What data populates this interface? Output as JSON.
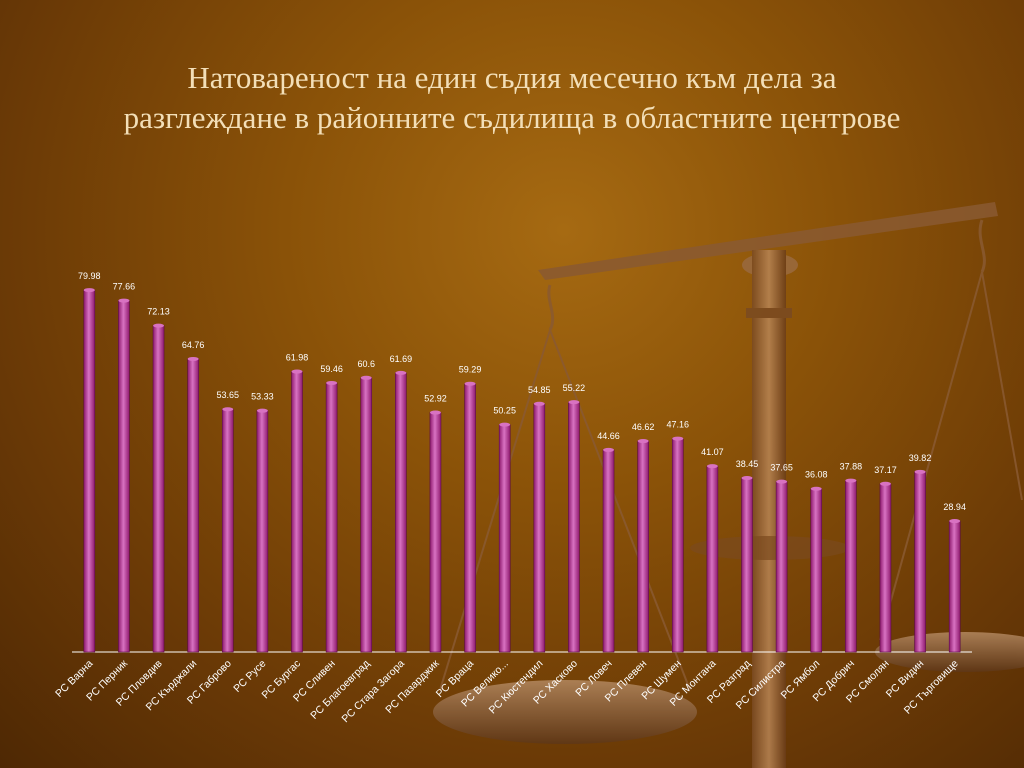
{
  "title_lines": [
    "Натовареност  на един съдия месечно към дела за",
    "разглеждане в районните съдилища в областните центрове"
  ],
  "colors": {
    "bar": "#8e1a6e",
    "bar_highlight": "#d872c2",
    "label": "#ffffff",
    "title": "#f3dfb8"
  },
  "chart_data": {
    "type": "bar",
    "categories": [
      "РС Варна",
      "РС Перник",
      "РС Пловдив",
      "РС Кърджали",
      "РС Габрово",
      "РС Русе",
      "РС Бургас",
      "РС Сливен",
      "РС Благоевград",
      "РС Стара Загора",
      "РС Пазарджик",
      "РС Враца",
      "РС Велико...",
      "РС Кюстендил",
      "РС Хасково",
      "РС Ловеч",
      "РС Плевен",
      "РС Шумен",
      "РС Монтана",
      "РС Разград",
      "РС Силистра",
      "РС Ямбол",
      "РС Добрич",
      "РС Смолян",
      "РС Видин",
      "РС Търговище"
    ],
    "values": [
      79.98,
      77.66,
      72.13,
      64.76,
      53.65,
      53.33,
      61.98,
      59.46,
      60.6,
      61.69,
      52.92,
      59.29,
      50.25,
      54.85,
      55.22,
      44.66,
      46.62,
      47.16,
      41.07,
      38.45,
      37.65,
      36.08,
      37.88,
      37.17,
      39.82,
      28.94
    ],
    "value_labels": [
      "79.98",
      "77.66",
      "72.13",
      "64.76",
      "53.65",
      "53.33",
      "61.98",
      "59.46",
      "60.6",
      "61.69",
      "52.92",
      "59.29",
      "50.25",
      "54.85",
      "55.22",
      "44.66",
      "46.62",
      "47.16",
      "41.07",
      "38.45",
      "37.65",
      "36.08",
      "37.88",
      "37.17",
      "39.82",
      "28.94"
    ],
    "ylim": [
      0,
      80
    ],
    "grid": false,
    "legend": "none",
    "title": "Натовареност  на един съдия месечно към дела за разглеждане в районните съдилища в областните центрове"
  }
}
